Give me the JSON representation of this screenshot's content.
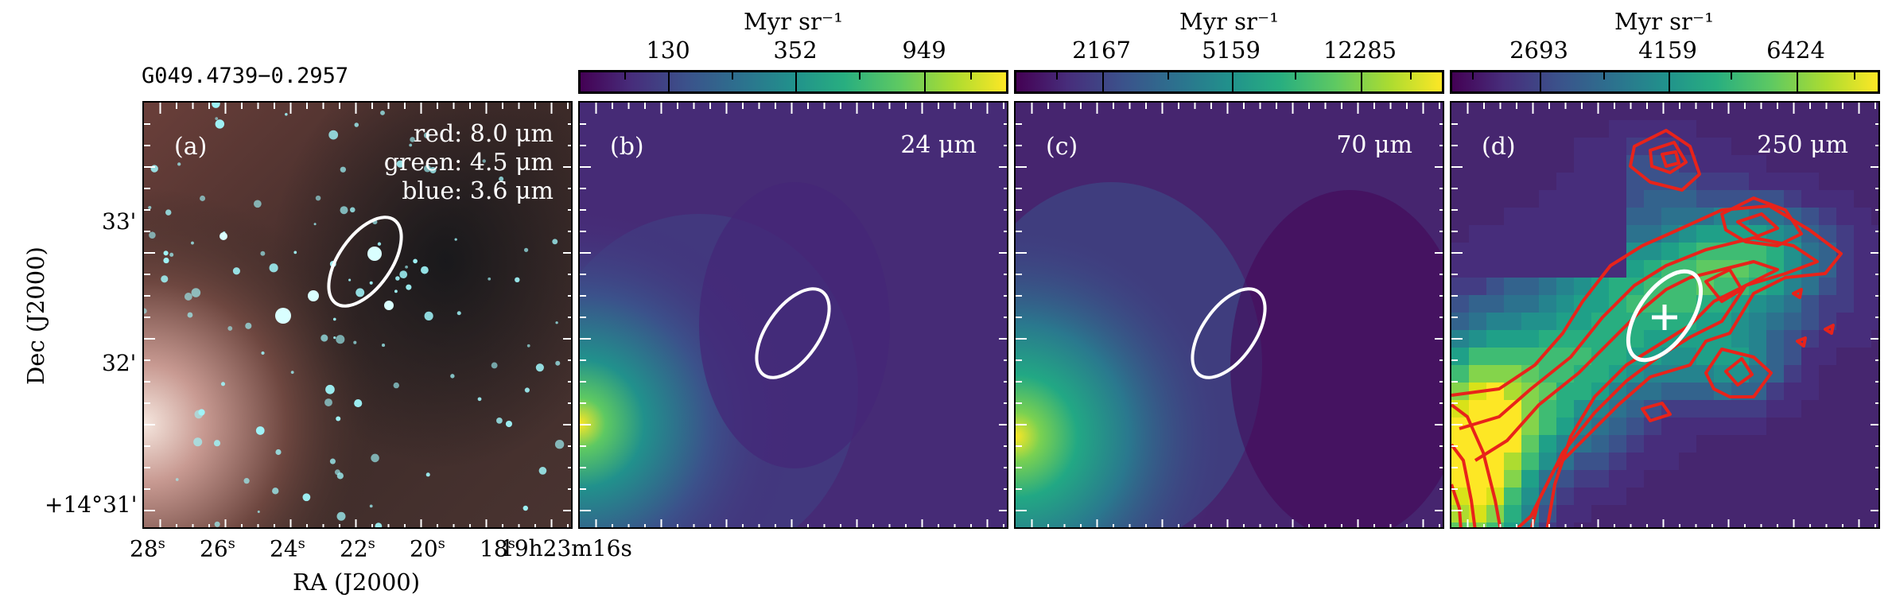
{
  "figure": {
    "source_name": "G049.4739−0.2957",
    "xaxis_label": "RA (J2000)",
    "yaxis_label": "Dec (J2000)",
    "ra_ticks": [
      "28",
      "26",
      "24",
      "22",
      "20",
      "18",
      "19h23m16s"
    ],
    "ra_tick_suffix": "s",
    "dec_ticks": [
      "33'",
      "32'",
      "+14°31'"
    ]
  },
  "panels": [
    {
      "letter": "(a)",
      "legend": [
        "red: 8.0 μm",
        "green: 4.5 μm",
        "blue: 3.6 μm"
      ]
    },
    {
      "letter": "(b)",
      "band": "24 μm"
    },
    {
      "letter": "(c)",
      "band": "70 μm"
    },
    {
      "letter": "(d)",
      "band": "250 μm"
    }
  ],
  "colorbars": [
    {
      "unit": "Myr sr⁻¹",
      "ticks": [
        "130",
        "352",
        "949"
      ]
    },
    {
      "unit": "Myr sr⁻¹",
      "ticks": [
        "2167",
        "5159",
        "12285"
      ]
    },
    {
      "unit": "Myr sr⁻¹",
      "ticks": [
        "2693",
        "4159",
        "6424"
      ]
    }
  ],
  "colors": {
    "viridis_dark": "#440154",
    "viridis_mid": "#21918c",
    "viridis_bright": "#fde725",
    "contour": "#e8231a",
    "aperture": "#ffffff"
  }
}
